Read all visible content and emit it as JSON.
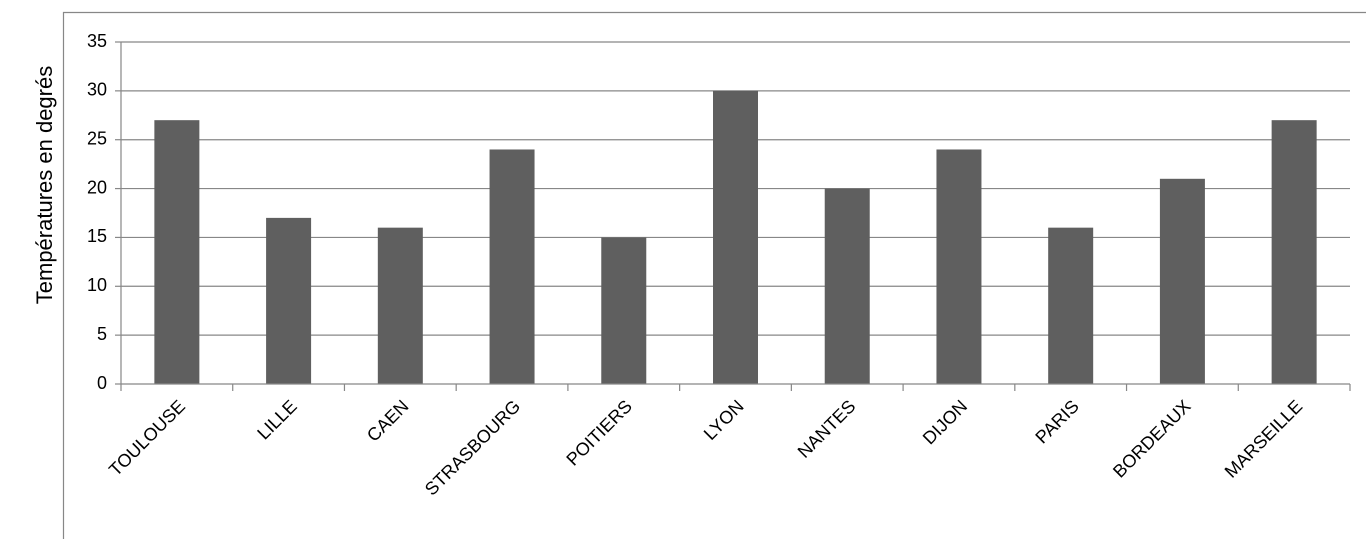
{
  "chart_data": {
    "type": "bar",
    "title": "",
    "xlabel": "",
    "ylabel": "Températures en degrés",
    "categories": [
      "TOULOUSE",
      "LILLE",
      "CAEN",
      "STRASBOURG",
      "POITIERS",
      "LYON",
      "NANTES",
      "DIJON",
      "PARIS",
      "BORDEAUX",
      "MARSEILLE"
    ],
    "series": [
      {
        "values": [
          27,
          17,
          16,
          24,
          15,
          30,
          20,
          24,
          16,
          21,
          27
        ]
      }
    ],
    "ylim": [
      0,
      35
    ],
    "yticks": [
      "0",
      "5",
      "10",
      "15",
      "20",
      "25",
      "30",
      "35"
    ],
    "grid": true,
    "legend": "none",
    "colors": {
      "bar": "#5f5f5f",
      "grid": "#878787",
      "axis": "#878787",
      "frame": "#878787"
    }
  }
}
